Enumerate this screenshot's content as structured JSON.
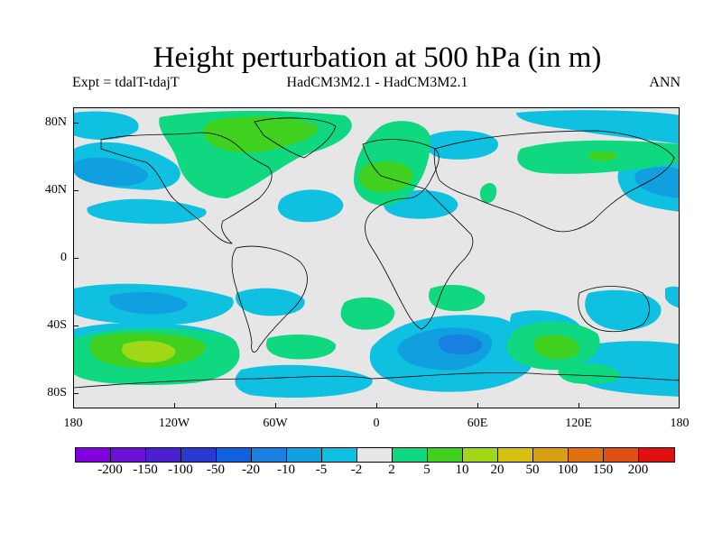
{
  "title": "Height perturbation at 500 hPa (in m)",
  "subtitle_left": "Expt = tdalT-tdajT",
  "subtitle_center": "HadCM3M2.1 - HadCM3M2.1",
  "subtitle_right": "ANN",
  "axes": {
    "y_labels": [
      "80N",
      "40N",
      "0",
      "40S",
      "80S"
    ],
    "x_labels": [
      "180",
      "120W",
      "60W",
      "0",
      "60E",
      "120E",
      "180"
    ]
  },
  "colorbar": {
    "colors": [
      "#8000e0",
      "#6a10d8",
      "#4c20d0",
      "#2838d0",
      "#1060e0",
      "#1880e0",
      "#10a0e0",
      "#10c0e0",
      "#e6e6e6",
      "#10d880",
      "#40d020",
      "#a0d818",
      "#d8c010",
      "#d8a010",
      "#e07010",
      "#e05010",
      "#e01010"
    ],
    "labels": [
      "-200",
      "-150",
      "-100",
      "-50",
      "-20",
      "-10",
      "-5",
      "-2",
      "2",
      "5",
      "10",
      "20",
      "50",
      "100",
      "150",
      "200"
    ]
  },
  "palette": {
    "c_neg10": "#10a0e0",
    "c_neg5": "#10c0e0",
    "c_pos2": "#10d880",
    "c_pos5": "#40d020",
    "c_pos10": "#a0d818",
    "c_neg20": "#1880e0"
  }
}
